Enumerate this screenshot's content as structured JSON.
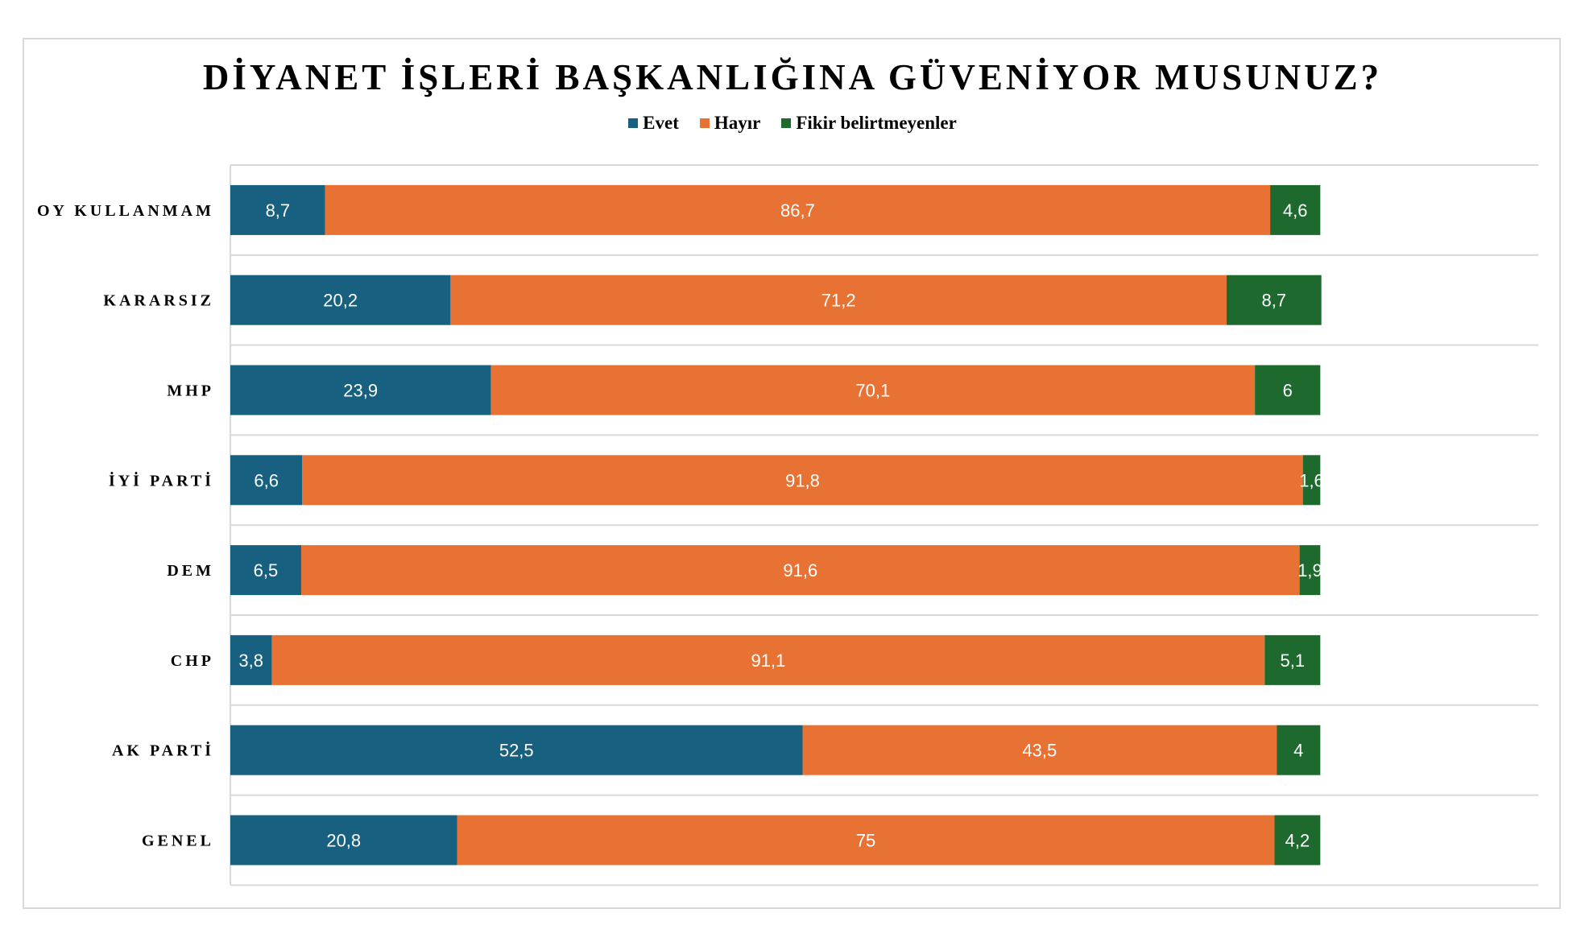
{
  "chart_data": {
    "type": "bar",
    "orientation": "horizontal",
    "stacked": true,
    "title": "DİYANET İŞLERİ BAŞKANLIĞINA GÜVENİYOR MUSUNUZ?",
    "categories": [
      "OY KULLANMAM",
      "KARARSIZ",
      "MHP",
      "İYİ PARTİ",
      "DEM",
      "CHP",
      "AK PARTİ",
      "GENEL"
    ],
    "series": [
      {
        "name": "Evet",
        "color": "#17607f",
        "values": [
          8.7,
          20.2,
          23.9,
          6.6,
          6.5,
          3.8,
          52.5,
          20.8
        ],
        "labels": [
          "8,7",
          "20,2",
          "23,9",
          "6,6",
          "6,5",
          "3,8",
          "52,5",
          "20,8"
        ]
      },
      {
        "name": "Hayır",
        "color": "#e87233",
        "values": [
          86.7,
          71.2,
          70.1,
          91.8,
          91.6,
          91.1,
          43.5,
          75
        ],
        "labels": [
          "86,7",
          "71,2",
          "70,1",
          "91,8",
          "91,6",
          "91,1",
          "43,5",
          "75"
        ]
      },
      {
        "name": "Fikir belirtmeyenler",
        "color": "#1e6a2e",
        "values": [
          4.6,
          8.7,
          6,
          1.6,
          1.9,
          5.1,
          4,
          4.2
        ],
        "labels": [
          "4,6",
          "8,7",
          "6",
          "1,6",
          "1,9",
          "5,1",
          "4",
          "4,2"
        ]
      }
    ],
    "xlim": [
      0,
      120
    ],
    "legend_position": "top",
    "grid": "horizontal separators between rows"
  }
}
